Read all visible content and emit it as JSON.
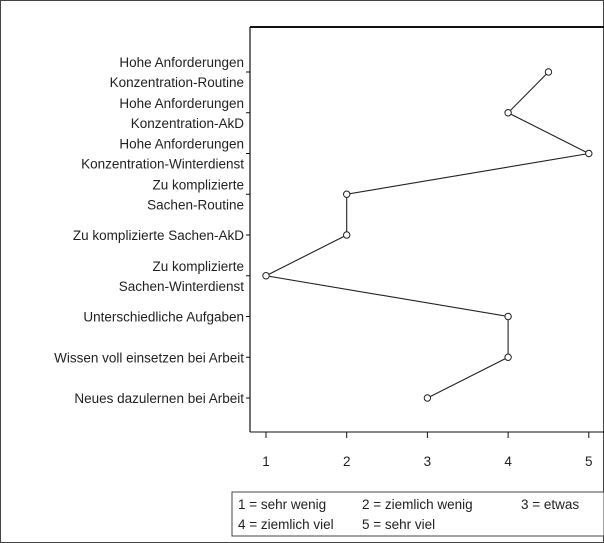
{
  "chart_data": {
    "type": "line",
    "orientation": "horizontal",
    "categories": [
      [
        "Hohe Anforderungen",
        "Konzentration-Routine"
      ],
      [
        "Hohe Anforderungen",
        "Konzentration-AkD"
      ],
      [
        "Hohe Anforderungen",
        "Konzentration-Winterdienst"
      ],
      [
        "Zu komplizierte",
        "Sachen-Routine"
      ],
      [
        "Zu komplizierte Sachen-AkD"
      ],
      [
        "Zu komplizierte",
        "Sachen-Winterdienst"
      ],
      [
        "Unterschiedliche Aufgaben"
      ],
      [
        "Wissen voll einsetzen bei Arbeit"
      ],
      [
        "Neues dazulernen bei Arbeit"
      ]
    ],
    "values": [
      4.5,
      4,
      5,
      2,
      2,
      1,
      4,
      4,
      3
    ],
    "xticks": [
      "1",
      "2",
      "3",
      "4",
      "5"
    ],
    "xlim": [
      0.85,
      5.1
    ],
    "grid": false,
    "title": "",
    "xlabel": "",
    "ylabel": "",
    "legend": {
      "position": "bottom",
      "rows": [
        [
          "1 = sehr wenig",
          "2 = ziemlich wenig",
          "3 = etwas"
        ],
        [
          "4 = ziemlich viel",
          "5 = sehr viel"
        ]
      ]
    }
  }
}
